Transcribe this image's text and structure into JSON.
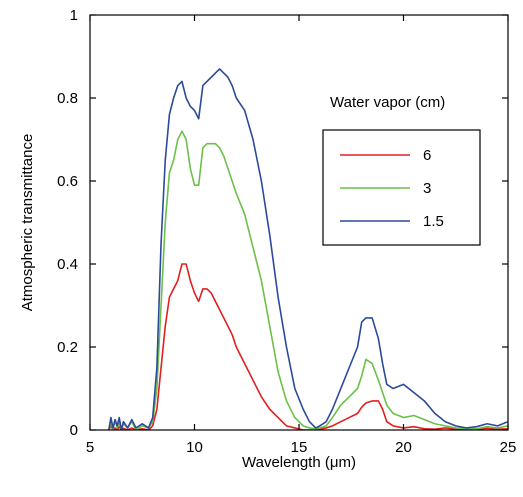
{
  "chart_data": {
    "type": "line",
    "xlabel": "Wavelength (μm)",
    "ylabel": "Atmospheric transmittance",
    "xlim": [
      5,
      25
    ],
    "ylim": [
      0,
      1
    ],
    "xticks": [
      5,
      10,
      15,
      20,
      25
    ],
    "yticks": [
      0,
      0.2,
      0.4,
      0.6,
      0.8,
      1
    ],
    "xtick_labels": [
      "5",
      "10",
      "15",
      "20",
      "25"
    ],
    "ytick_labels": [
      "0",
      "0.2",
      "0.4",
      "0.6",
      "0.8",
      "1"
    ],
    "grid": false,
    "legend": {
      "title": "Water vapor (cm)",
      "placement": "upper-right"
    },
    "series": [
      {
        "name": "6",
        "color": "#e02020",
        "x": [
          5.9,
          6.0,
          6.1,
          6.2,
          6.3,
          6.4,
          6.5,
          6.6,
          6.8,
          7.0,
          7.2,
          7.5,
          7.8,
          8.0,
          8.2,
          8.4,
          8.6,
          8.8,
          9.0,
          9.2,
          9.4,
          9.6,
          9.8,
          10.0,
          10.2,
          10.4,
          10.6,
          10.8,
          11.0,
          11.2,
          11.4,
          11.6,
          11.8,
          12.0,
          12.4,
          12.8,
          13.2,
          13.6,
          14.0,
          14.4,
          14.8,
          15.2,
          15.5,
          15.8,
          16.0,
          16.3,
          16.6,
          17.0,
          17.4,
          17.8,
          18.0,
          18.2,
          18.5,
          18.8,
          19.0,
          19.2,
          19.5,
          20.0,
          20.5,
          21.0,
          21.5,
          22.0,
          22.5,
          23.0,
          23.5,
          24.0,
          24.5,
          25.0
        ],
        "y": [
          0.0,
          0.01,
          0.0,
          0.005,
          0.0,
          0.008,
          0.0,
          0.004,
          0.0,
          0.005,
          0.0,
          0.003,
          0.0,
          0.01,
          0.05,
          0.15,
          0.25,
          0.32,
          0.34,
          0.36,
          0.4,
          0.4,
          0.36,
          0.33,
          0.31,
          0.34,
          0.34,
          0.33,
          0.31,
          0.29,
          0.27,
          0.25,
          0.23,
          0.2,
          0.16,
          0.12,
          0.08,
          0.05,
          0.03,
          0.01,
          0.005,
          0.0,
          0.0,
          0.0,
          0.002,
          0.005,
          0.01,
          0.02,
          0.03,
          0.04,
          0.055,
          0.065,
          0.07,
          0.07,
          0.05,
          0.02,
          0.01,
          0.005,
          0.008,
          0.003,
          0.002,
          0.005,
          0.002,
          0.003,
          0.002,
          0.004,
          0.002,
          0.003
        ]
      },
      {
        "name": "3",
        "color": "#6cc04a",
        "x": [
          5.9,
          6.0,
          6.1,
          6.2,
          6.3,
          6.4,
          6.5,
          6.6,
          6.8,
          7.0,
          7.2,
          7.5,
          7.8,
          8.0,
          8.2,
          8.4,
          8.6,
          8.8,
          9.0,
          9.2,
          9.4,
          9.6,
          9.8,
          10.0,
          10.2,
          10.4,
          10.6,
          10.8,
          11.0,
          11.2,
          11.4,
          11.6,
          11.8,
          12.0,
          12.4,
          12.8,
          13.2,
          13.6,
          14.0,
          14.4,
          14.8,
          15.2,
          15.5,
          15.8,
          16.0,
          16.3,
          16.6,
          17.0,
          17.4,
          17.8,
          18.0,
          18.2,
          18.5,
          18.8,
          19.0,
          19.2,
          19.5,
          20.0,
          20.5,
          21.0,
          21.5,
          22.0,
          22.5,
          23.0,
          23.5,
          24.0,
          24.5,
          25.0
        ],
        "y": [
          0.0,
          0.02,
          0.0,
          0.025,
          0.005,
          0.02,
          0.0,
          0.015,
          0.005,
          0.02,
          0.0,
          0.01,
          0.005,
          0.02,
          0.1,
          0.3,
          0.5,
          0.62,
          0.65,
          0.7,
          0.72,
          0.7,
          0.63,
          0.59,
          0.59,
          0.68,
          0.69,
          0.69,
          0.69,
          0.68,
          0.66,
          0.63,
          0.6,
          0.57,
          0.52,
          0.44,
          0.36,
          0.25,
          0.14,
          0.07,
          0.03,
          0.01,
          0.005,
          0.003,
          0.005,
          0.01,
          0.03,
          0.06,
          0.08,
          0.1,
          0.13,
          0.17,
          0.16,
          0.12,
          0.09,
          0.06,
          0.04,
          0.03,
          0.035,
          0.025,
          0.015,
          0.01,
          0.005,
          0.003,
          0.003,
          0.008,
          0.005,
          0.01
        ]
      },
      {
        "name": "1.5",
        "color": "#2b4a9b",
        "x": [
          5.9,
          6.0,
          6.1,
          6.2,
          6.3,
          6.4,
          6.5,
          6.6,
          6.8,
          7.0,
          7.2,
          7.5,
          7.8,
          8.0,
          8.2,
          8.4,
          8.6,
          8.8,
          9.0,
          9.2,
          9.4,
          9.6,
          9.8,
          10.0,
          10.2,
          10.4,
          10.6,
          10.8,
          11.0,
          11.2,
          11.4,
          11.6,
          11.8,
          12.0,
          12.4,
          12.8,
          13.2,
          13.6,
          14.0,
          14.4,
          14.8,
          15.2,
          15.5,
          15.8,
          16.0,
          16.3,
          16.6,
          17.0,
          17.4,
          17.8,
          18.0,
          18.2,
          18.5,
          18.8,
          19.0,
          19.2,
          19.5,
          20.0,
          20.5,
          21.0,
          21.5,
          22.0,
          22.5,
          23.0,
          23.5,
          24.0,
          24.5,
          25.0
        ],
        "y": [
          0.0,
          0.03,
          0.005,
          0.025,
          0.01,
          0.03,
          0.0,
          0.02,
          0.005,
          0.025,
          0.005,
          0.015,
          0.005,
          0.03,
          0.15,
          0.45,
          0.65,
          0.76,
          0.8,
          0.83,
          0.84,
          0.8,
          0.78,
          0.77,
          0.75,
          0.83,
          0.84,
          0.85,
          0.86,
          0.87,
          0.86,
          0.85,
          0.83,
          0.8,
          0.77,
          0.7,
          0.6,
          0.47,
          0.32,
          0.2,
          0.1,
          0.05,
          0.02,
          0.005,
          0.01,
          0.02,
          0.05,
          0.1,
          0.15,
          0.2,
          0.26,
          0.27,
          0.27,
          0.22,
          0.16,
          0.11,
          0.1,
          0.11,
          0.09,
          0.07,
          0.04,
          0.02,
          0.01,
          0.005,
          0.008,
          0.015,
          0.01,
          0.02
        ]
      }
    ]
  }
}
